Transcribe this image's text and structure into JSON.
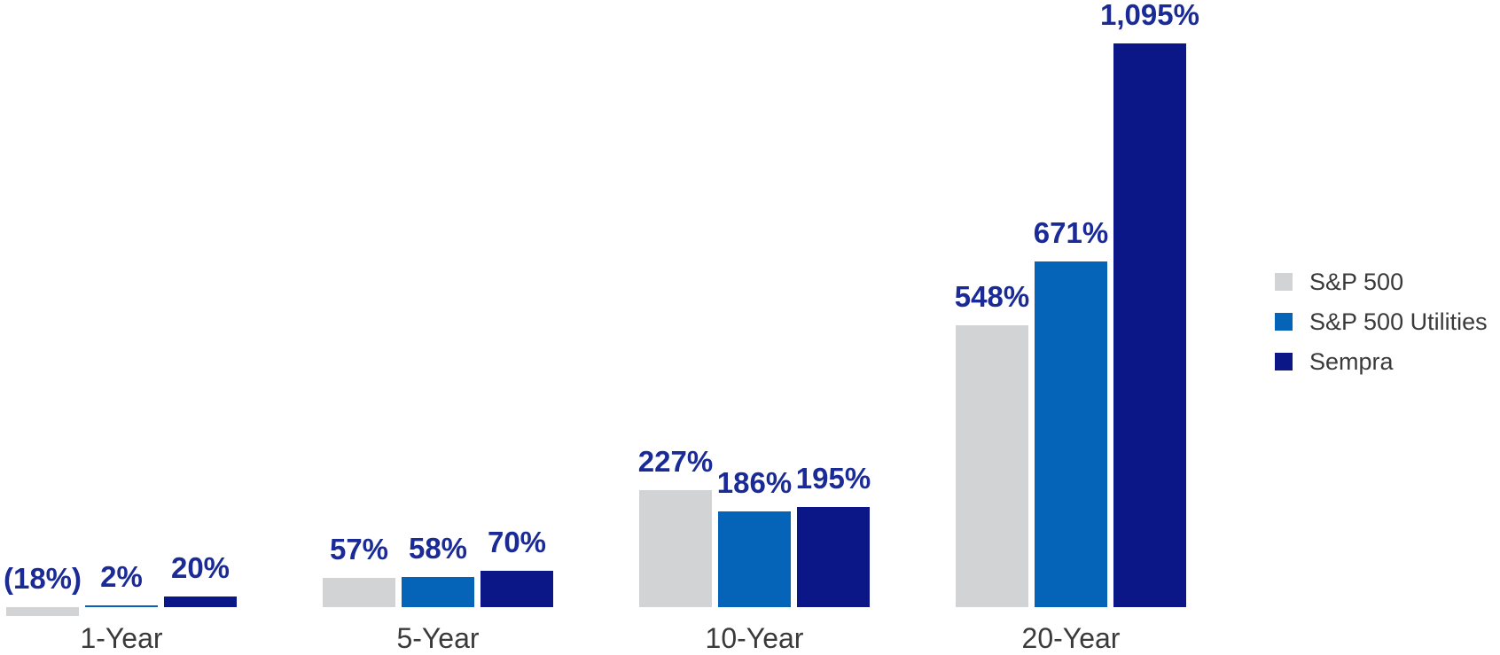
{
  "chart_data": {
    "type": "bar",
    "title": "",
    "xlabel": "",
    "ylabel": "",
    "categories": [
      "1-Year",
      "5-Year",
      "10-Year",
      "20-Year"
    ],
    "series": [
      {
        "name": "S&P 500",
        "color": "#d1d3d4",
        "values": [
          -18,
          57,
          227,
          548
        ],
        "labels": [
          "(18%)",
          "57%",
          "227%",
          "548%"
        ]
      },
      {
        "name": "S&P 500 Utilities",
        "color": "#0664b8",
        "values": [
          2,
          58,
          186,
          671
        ],
        "labels": [
          "2%",
          "58%",
          "186%",
          "671%"
        ]
      },
      {
        "name": "Sempra",
        "color": "#0b1786",
        "values": [
          20,
          70,
          195,
          1095
        ],
        "labels": [
          "20%",
          "70%",
          "195%",
          "1,095%"
        ]
      }
    ],
    "unit": "%",
    "value_label_color": "#1a2a96",
    "category_label_color": "#3a3a3a",
    "background_color": "#ffffff",
    "grid": false,
    "axes_visible": false,
    "legend_position": "right"
  }
}
